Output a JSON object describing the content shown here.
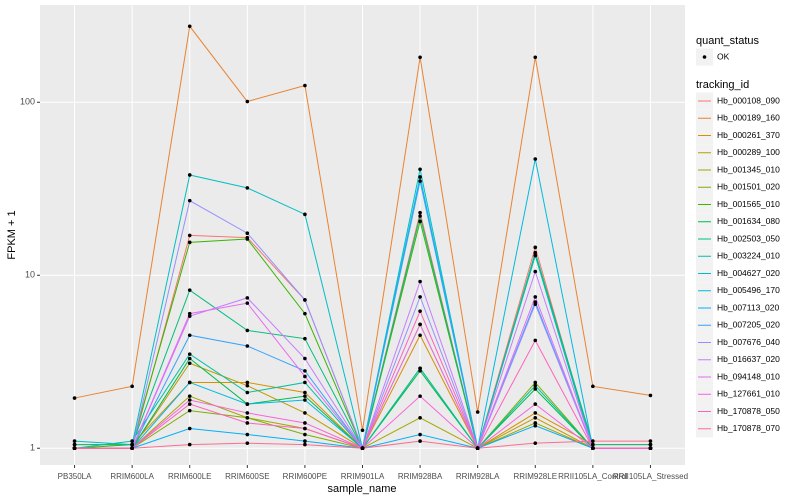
{
  "chart_data": {
    "type": "line",
    "x_label": "sample_name",
    "y_label": "FPKM + 1",
    "categories": [
      "PB350LA",
      "RRIM600LA",
      "RRIM600LE",
      "RRIM600SE",
      "RRIM600PE",
      "RRIM901LA",
      "RRIM928BA",
      "RRIM928LA",
      "RRIM928LE",
      "RRII105LA_Control",
      "RRII105LA_Stressed"
    ],
    "log_y": true,
    "ylim": [
      0.8,
      365
    ],
    "yticks": [
      1,
      10,
      100
    ],
    "grid": true,
    "legend_position": "right",
    "legend_title": "tracking_id",
    "point_legend": {
      "title": "quant_status",
      "labels": [
        "OK"
      ],
      "color": "#000000"
    },
    "series": [
      {
        "name": "Hb_000108_090",
        "color": "#F8766D",
        "values": [
          1.0,
          1.0,
          17,
          16.5,
          7.2,
          1.0,
          23,
          1.0,
          14.5,
          1.0,
          1.0
        ]
      },
      {
        "name": "Hb_000189_160",
        "color": "#EA8331",
        "values": [
          1.95,
          2.28,
          275,
          101,
          125,
          1.27,
          182,
          1.62,
          182,
          2.28,
          2.02
        ]
      },
      {
        "name": "Hb_000261_370",
        "color": "#D89000",
        "values": [
          1.05,
          1.05,
          2.4,
          2.4,
          2.1,
          1.0,
          4.5,
          1.0,
          1.6,
          1.05,
          1.05
        ]
      },
      {
        "name": "Hb_000289_100",
        "color": "#C09B00",
        "values": [
          1.0,
          1.0,
          3.1,
          2.3,
          1.6,
          1.0,
          5.2,
          1.0,
          1.5,
          1.0,
          1.0
        ]
      },
      {
        "name": "Hb_001345_010",
        "color": "#A3A500",
        "values": [
          1.0,
          1.0,
          2.0,
          1.5,
          1.3,
          1.0,
          1.5,
          1.0,
          1.4,
          1.0,
          1.0
        ]
      },
      {
        "name": "Hb_001501_020",
        "color": "#7CAE00",
        "values": [
          1.0,
          1.0,
          1.65,
          1.5,
          1.2,
          1.0,
          2.9,
          1.0,
          2.4,
          1.0,
          1.0
        ]
      },
      {
        "name": "Hb_001565_010",
        "color": "#39B600",
        "values": [
          1.0,
          1.05,
          15.5,
          16.2,
          6.0,
          1.0,
          20.5,
          1.0,
          13,
          1.0,
          1.0
        ]
      },
      {
        "name": "Hb_001634_080",
        "color": "#00BB4E",
        "values": [
          1.0,
          1.0,
          3.3,
          1.8,
          2.0,
          1.0,
          2.8,
          1.0,
          2.2,
          1.0,
          1.0
        ]
      },
      {
        "name": "Hb_002503_050",
        "color": "#00BF7D",
        "values": [
          1.05,
          1.05,
          8.2,
          4.8,
          4.3,
          1.0,
          22,
          1.0,
          13.5,
          1.05,
          1.05
        ]
      },
      {
        "name": "Hb_003224_010",
        "color": "#00C1A3",
        "values": [
          1.0,
          1.1,
          3.5,
          2.1,
          2.4,
          1.0,
          2.9,
          1.0,
          2.3,
          1.0,
          1.0
        ]
      },
      {
        "name": "Hb_004627_020",
        "color": "#00BFC4",
        "values": [
          1.1,
          1.05,
          38,
          32,
          22.5,
          1.0,
          41,
          1.0,
          13,
          1.0,
          1.0
        ]
      },
      {
        "name": "Hb_005496_170",
        "color": "#00BAE0",
        "values": [
          1.0,
          1.0,
          2.4,
          1.8,
          1.9,
          1.0,
          37,
          1.0,
          47,
          1.0,
          1.0
        ]
      },
      {
        "name": "Hb_007113_020",
        "color": "#00B0F6",
        "values": [
          1.0,
          1.0,
          1.3,
          1.2,
          1.1,
          1.0,
          1.2,
          1.0,
          1.35,
          1.0,
          1.0
        ]
      },
      {
        "name": "Hb_007205_020",
        "color": "#35A2FF",
        "values": [
          1.0,
          1.0,
          4.5,
          3.9,
          2.8,
          1.0,
          35,
          1.0,
          7,
          1.0,
          1.0
        ]
      },
      {
        "name": "Hb_007676_040",
        "color": "#9590FF",
        "values": [
          1.0,
          1.0,
          27,
          17.5,
          7.2,
          1.0,
          7.5,
          1.0,
          6.8,
          1.0,
          1.0
        ]
      },
      {
        "name": "Hb_016637_020",
        "color": "#C77CFF",
        "values": [
          1.0,
          1.0,
          5.8,
          7.4,
          3.3,
          1.0,
          9.2,
          1.0,
          10.5,
          1.0,
          1.0
        ]
      },
      {
        "name": "Hb_094148_010",
        "color": "#E76BF3",
        "values": [
          1.0,
          1.0,
          6.0,
          6.9,
          2.6,
          1.0,
          5.2,
          1.0,
          7.5,
          1.0,
          1.0
        ]
      },
      {
        "name": "Hb_127661_010",
        "color": "#FA62DB",
        "values": [
          1.0,
          1.0,
          1.9,
          1.6,
          1.4,
          1.0,
          2.0,
          1.0,
          1.8,
          1.0,
          1.0
        ]
      },
      {
        "name": "Hb_170878_050",
        "color": "#FF62BC",
        "values": [
          1.0,
          1.0,
          1.8,
          1.4,
          1.3,
          1.0,
          6.2,
          1.0,
          4.2,
          1.0,
          1.0
        ]
      },
      {
        "name": "Hb_170878_070",
        "color": "#FF6C91",
        "values": [
          1.0,
          1.0,
          1.05,
          1.07,
          1.05,
          1.0,
          1.1,
          1.0,
          1.07,
          1.1,
          1.1
        ]
      }
    ]
  }
}
